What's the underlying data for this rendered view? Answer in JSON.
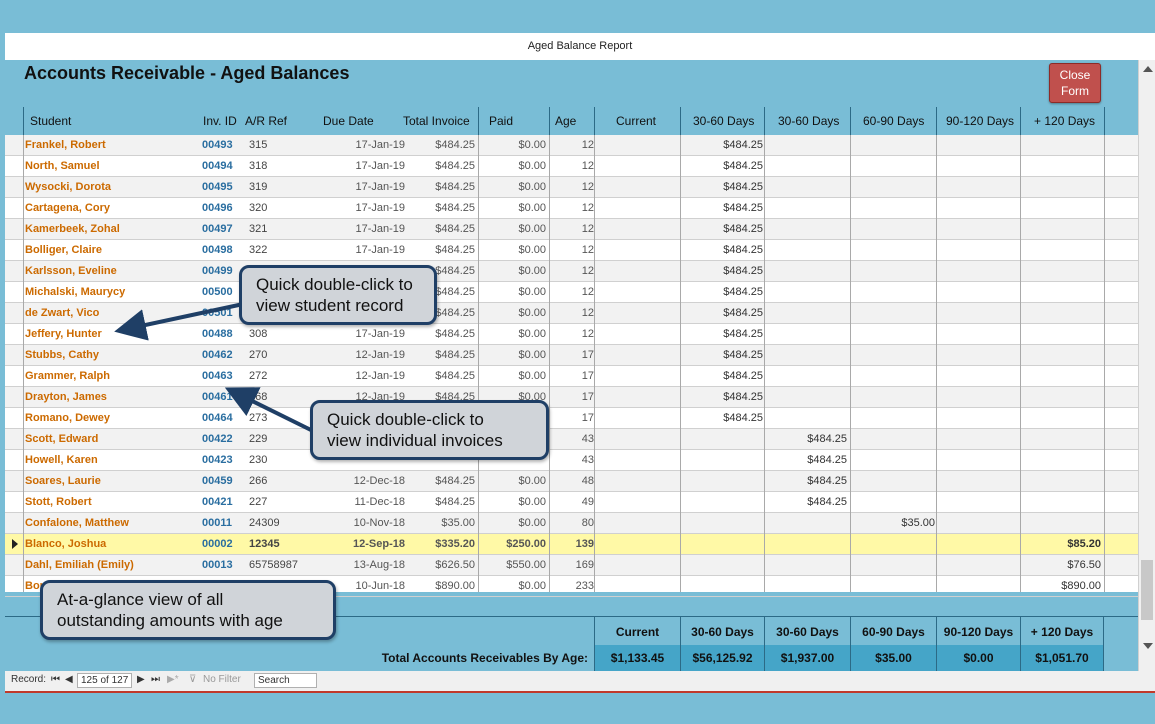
{
  "window": {
    "title": "Aged Balance Report"
  },
  "report": {
    "title": "Accounts Receivable - Aged Balances",
    "close_label": "Close\nForm"
  },
  "columns": {
    "student": "Student",
    "inv_id": "Inv. ID",
    "ar_ref": "A/R Ref",
    "due_date": "Due Date",
    "total_invoice": "Total Invoice",
    "paid": "Paid",
    "age": "Age",
    "current": "Current",
    "d30a": "30-60 Days",
    "d30b": "30-60 Days",
    "d60": "60-90 Days",
    "d90": "90-120 Days",
    "d120": "+ 120 Days"
  },
  "rows": [
    {
      "name": "Frankel, Robert",
      "inv": "00493",
      "ar": "315",
      "due": "17-Jan-19",
      "total": "$484.25",
      "paid": "$0.00",
      "age": "12",
      "b30a": "$484.25",
      "b30b": "",
      "b60": "",
      "b120": ""
    },
    {
      "name": "North, Samuel",
      "inv": "00494",
      "ar": "318",
      "due": "17-Jan-19",
      "total": "$484.25",
      "paid": "$0.00",
      "age": "12",
      "b30a": "$484.25",
      "b30b": "",
      "b60": "",
      "b120": ""
    },
    {
      "name": "Wysocki, Dorota",
      "inv": "00495",
      "ar": "319",
      "due": "17-Jan-19",
      "total": "$484.25",
      "paid": "$0.00",
      "age": "12",
      "b30a": "$484.25",
      "b30b": "",
      "b60": "",
      "b120": ""
    },
    {
      "name": "Cartagena, Cory",
      "inv": "00496",
      "ar": "320",
      "due": "17-Jan-19",
      "total": "$484.25",
      "paid": "$0.00",
      "age": "12",
      "b30a": "$484.25",
      "b30b": "",
      "b60": "",
      "b120": ""
    },
    {
      "name": "Kamerbeek, Zohal",
      "inv": "00497",
      "ar": "321",
      "due": "17-Jan-19",
      "total": "$484.25",
      "paid": "$0.00",
      "age": "12",
      "b30a": "$484.25",
      "b30b": "",
      "b60": "",
      "b120": ""
    },
    {
      "name": "Bolliger, Claire",
      "inv": "00498",
      "ar": "322",
      "due": "17-Jan-19",
      "total": "$484.25",
      "paid": "$0.00",
      "age": "12",
      "b30a": "$484.25",
      "b30b": "",
      "b60": "",
      "b120": ""
    },
    {
      "name": "Karlsson, Eveline",
      "inv": "00499",
      "ar": "",
      "due": "",
      "total": "$484.25",
      "paid": "$0.00",
      "age": "12",
      "b30a": "$484.25",
      "b30b": "",
      "b60": "",
      "b120": ""
    },
    {
      "name": "Michalski, Maurycy",
      "inv": "00500",
      "ar": "",
      "due": "",
      "total": "$484.25",
      "paid": "$0.00",
      "age": "12",
      "b30a": "$484.25",
      "b30b": "",
      "b60": "",
      "b120": ""
    },
    {
      "name": "de Zwart, Vico",
      "inv": "00501",
      "ar": "",
      "due": "",
      "total": "$484.25",
      "paid": "$0.00",
      "age": "12",
      "b30a": "$484.25",
      "b30b": "",
      "b60": "",
      "b120": ""
    },
    {
      "name": "Jeffery, Hunter",
      "inv": "00488",
      "ar": "308",
      "due": "17-Jan-19",
      "total": "$484.25",
      "paid": "$0.00",
      "age": "12",
      "b30a": "$484.25",
      "b30b": "",
      "b60": "",
      "b120": ""
    },
    {
      "name": "Stubbs, Cathy",
      "inv": "00462",
      "ar": "270",
      "due": "12-Jan-19",
      "total": "$484.25",
      "paid": "$0.00",
      "age": "17",
      "b30a": "$484.25",
      "b30b": "",
      "b60": "",
      "b120": ""
    },
    {
      "name": "Grammer, Ralph",
      "inv": "00463",
      "ar": "272",
      "due": "12-Jan-19",
      "total": "$484.25",
      "paid": "$0.00",
      "age": "17",
      "b30a": "$484.25",
      "b30b": "",
      "b60": "",
      "b120": ""
    },
    {
      "name": "Drayton, James",
      "inv": "00461",
      "ar": "268",
      "due": "12-Jan-19",
      "total": "$484.25",
      "paid": "$0.00",
      "age": "17",
      "b30a": "$484.25",
      "b30b": "",
      "b60": "",
      "b120": ""
    },
    {
      "name": "Romano, Dewey",
      "inv": "00464",
      "ar": "273",
      "due": "",
      "total": "",
      "paid": "",
      "age": "17",
      "b30a": "$484.25",
      "b30b": "",
      "b60": "",
      "b120": ""
    },
    {
      "name": "Scott, Edward",
      "inv": "00422",
      "ar": "229",
      "due": "",
      "total": "",
      "paid": "",
      "age": "43",
      "b30a": "",
      "b30b": "$484.25",
      "b60": "",
      "b120": ""
    },
    {
      "name": "Howell, Karen",
      "inv": "00423",
      "ar": "230",
      "due": "",
      "total": "",
      "paid": "",
      "age": "43",
      "b30a": "",
      "b30b": "$484.25",
      "b60": "",
      "b120": ""
    },
    {
      "name": "Soares, Laurie",
      "inv": "00459",
      "ar": "266",
      "due": "12-Dec-18",
      "total": "$484.25",
      "paid": "$0.00",
      "age": "48",
      "b30a": "",
      "b30b": "$484.25",
      "b60": "",
      "b120": ""
    },
    {
      "name": "Stott, Robert",
      "inv": "00421",
      "ar": "227",
      "due": "11-Dec-18",
      "total": "$484.25",
      "paid": "$0.00",
      "age": "49",
      "b30a": "",
      "b30b": "$484.25",
      "b60": "",
      "b120": ""
    },
    {
      "name": "Confalone, Matthew",
      "inv": "00011",
      "ar": "24309",
      "due": "10-Nov-18",
      "total": "$35.00",
      "paid": "$0.00",
      "age": "80",
      "b30a": "",
      "b30b": "",
      "b60": "$35.00",
      "b120": ""
    },
    {
      "name": "Blanco, Joshua",
      "inv": "00002",
      "ar": "12345",
      "due": "12-Sep-18",
      "total": "$335.20",
      "paid": "$250.00",
      "age": "139",
      "b30a": "",
      "b30b": "",
      "b60": "",
      "b120": "$85.20"
    },
    {
      "name": "Dahl, Emiliah (Emily)",
      "inv": "00013",
      "ar": "65758987",
      "due": "13-Aug-18",
      "total": "$626.50",
      "paid": "$550.00",
      "age": "169",
      "b30a": "",
      "b30b": "",
      "b60": "",
      "b120": "$76.50"
    },
    {
      "name": "Bonetti, Dario",
      "inv": "",
      "ar": "",
      "due": "10-Jun-18",
      "total": "$890.00",
      "paid": "$0.00",
      "age": "233",
      "b30a": "",
      "b30b": "",
      "b60": "",
      "b120": "$890.00"
    }
  ],
  "selected_row": 19,
  "totals": {
    "label": "Total Accounts Receivables By Age:",
    "heads": [
      "Current",
      "30-60 Days",
      "30-60 Days",
      "60-90 Days",
      "90-120 Days",
      "+ 120 Days"
    ],
    "values": [
      "$1,133.45",
      "$56,125.92",
      "$1,937.00",
      "$35.00",
      "$0.00",
      "$1,051.70"
    ]
  },
  "navbar": {
    "record_label": "Record:",
    "record_pos": "125 of 127",
    "filter": "No Filter",
    "search": "Search"
  },
  "callouts": {
    "student": "Quick double-click to\nview student record",
    "invoice": "Quick double-click to\nview individual invoices",
    "glance": "At-a-glance view of all\noutstanding amounts with age"
  },
  "colors": {
    "accent": "#79bdd6",
    "name": "#cc6a00",
    "inv": "#2a6ea0",
    "selected": "#fff9a6",
    "close": "#c0504d"
  }
}
